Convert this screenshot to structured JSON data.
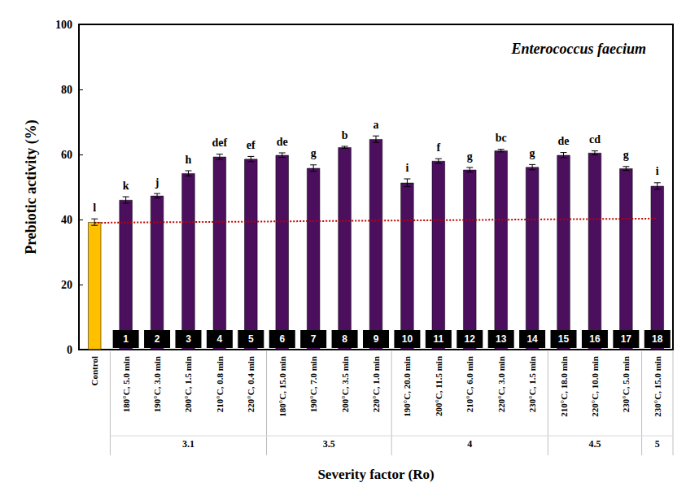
{
  "chart_data": {
    "type": "bar",
    "title": "Enterococcus faecium",
    "x_label": "Severity factor (Ro)",
    "y_label": "Prebiotic activity (%)",
    "categories": [
      "Control",
      "180°C, 5.0 min",
      "190°C, 3.0 min",
      "200°C, 1.5 min",
      "210°C, 0.8 min",
      "220°C, 0.4 min",
      "180°C, 15.0 min",
      "190°C, 7.0 min",
      "200°C, 3.5 min",
      "220°C, 1.0 min",
      "190°C, 20.0 min",
      "200°C, 11.5 min",
      "210°C, 6.0 min",
      "220°C, 3.0 min",
      "230°C, 1.5 min",
      "210°C, 18.0 min",
      "220°C, 10.0 min",
      "230°C, 5.0 min",
      "230°C, 15.0 min"
    ],
    "values": [
      39.2,
      46.0,
      47.3,
      54.2,
      59.3,
      58.6,
      59.8,
      55.8,
      62.2,
      64.7,
      51.3,
      58.0,
      55.3,
      61.2,
      56.1,
      59.8,
      60.5,
      55.7,
      50.3
    ],
    "errors": [
      1.0,
      1.0,
      0.7,
      0.8,
      0.8,
      0.8,
      0.7,
      1.0,
      0.3,
      1.0,
      1.2,
      0.7,
      0.7,
      0.4,
      0.8,
      0.8,
      0.6,
      0.6,
      1.0
    ],
    "annotations": [
      "l",
      "k",
      "j",
      "h",
      "def",
      "ef",
      "de",
      "g",
      "b",
      "a",
      "i",
      "f",
      "g",
      "bc",
      "g",
      "de",
      "cd",
      "g",
      "i"
    ],
    "bar_numbers": [
      null,
      1,
      2,
      3,
      4,
      5,
      6,
      7,
      8,
      9,
      10,
      11,
      12,
      13,
      14,
      15,
      16,
      17,
      18
    ],
    "groups": [
      {
        "label": "3.1",
        "count": 5
      },
      {
        "label": "3.5",
        "count": 4
      },
      {
        "label": "4",
        "count": 5
      },
      {
        "label": "4.5",
        "count": 3
      },
      {
        "label": "5",
        "count": 1
      }
    ],
    "colors": [
      "#ffc000",
      "#4b0f5e",
      "#4b0f5e",
      "#4b0f5e",
      "#4b0f5e",
      "#4b0f5e",
      "#4b0f5e",
      "#4b0f5e",
      "#4b0f5e",
      "#4b0f5e",
      "#4b0f5e",
      "#4b0f5e",
      "#4b0f5e",
      "#4b0f5e",
      "#4b0f5e",
      "#4b0f5e",
      "#4b0f5e",
      "#4b0f5e",
      "#4b0f5e"
    ],
    "reference_line": {
      "start": 39.0,
      "end": 40.3,
      "color": "#c00000"
    },
    "ylim": [
      0,
      100
    ],
    "yticks": [
      0,
      20,
      40,
      60,
      80,
      100
    ],
    "grid": false
  }
}
